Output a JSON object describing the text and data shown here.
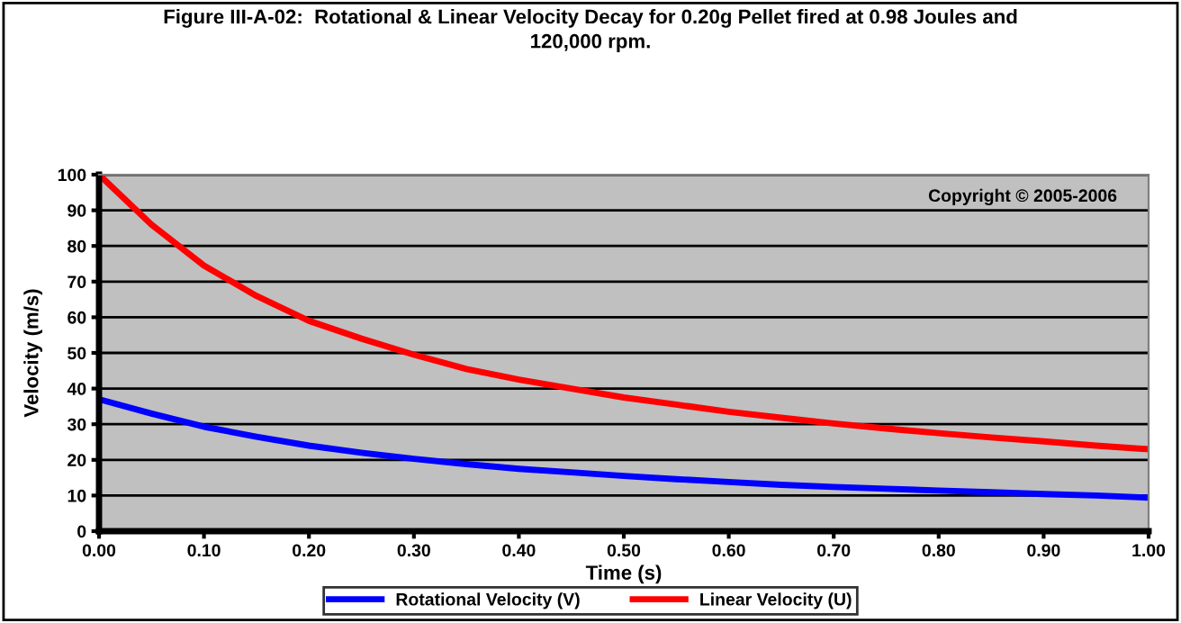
{
  "chart_data": {
    "type": "line",
    "title": "Figure III-A-02:  Rotational & Linear Velocity Decay for 0.20g Pellet fired at 0.98 Joules and\n120,000 rpm.",
    "xlabel": "Time (s)",
    "ylabel": "Velocity (m/s)",
    "annotations": [
      "Copyright © 2005-2006"
    ],
    "x": [
      0,
      0.05,
      0.1,
      0.15,
      0.2,
      0.25,
      0.3,
      0.35,
      0.4,
      0.45,
      0.5,
      0.55,
      0.6,
      0.65,
      0.7,
      0.75,
      0.8,
      0.85,
      0.9,
      0.95,
      1.0
    ],
    "series": [
      {
        "name": "Rotational Velocity (V)",
        "color": "#0000ff",
        "values": [
          37,
          33,
          29.3,
          26.5,
          24,
          22,
          20.3,
          18.8,
          17.5,
          16.5,
          15.5,
          14.6,
          13.8,
          13,
          12.4,
          11.9,
          11.4,
          10.9,
          10.4,
          10,
          9.4
        ]
      },
      {
        "name": "Linear Velocity (U)",
        "color": "#ff0000",
        "values": [
          100,
          86,
          74.5,
          66,
          59,
          54,
          49.5,
          45.5,
          42.5,
          40,
          37.5,
          35.5,
          33.5,
          31.8,
          30.2,
          28.8,
          27.5,
          26.3,
          25.2,
          24,
          23
        ]
      }
    ],
    "xlim": [
      0,
      1.0
    ],
    "ylim": [
      0,
      100
    ],
    "xticks": [
      {
        "value": 0,
        "label": "0.00"
      },
      {
        "value": 0.1,
        "label": "0.10"
      },
      {
        "value": 0.2,
        "label": "0.20"
      },
      {
        "value": 0.3,
        "label": "0.30"
      },
      {
        "value": 0.4,
        "label": "0.40"
      },
      {
        "value": 0.5,
        "label": "0.50"
      },
      {
        "value": 0.6,
        "label": "0.60"
      },
      {
        "value": 0.7,
        "label": "0.70"
      },
      {
        "value": 0.8,
        "label": "0.80"
      },
      {
        "value": 0.9,
        "label": "0.90"
      },
      {
        "value": 1.0,
        "label": "1.00"
      }
    ],
    "yticks": [
      0,
      10,
      20,
      30,
      40,
      50,
      60,
      70,
      80,
      90,
      100
    ],
    "grid": "y",
    "legend": "bottom",
    "marker": "none",
    "line_style": "solid"
  }
}
